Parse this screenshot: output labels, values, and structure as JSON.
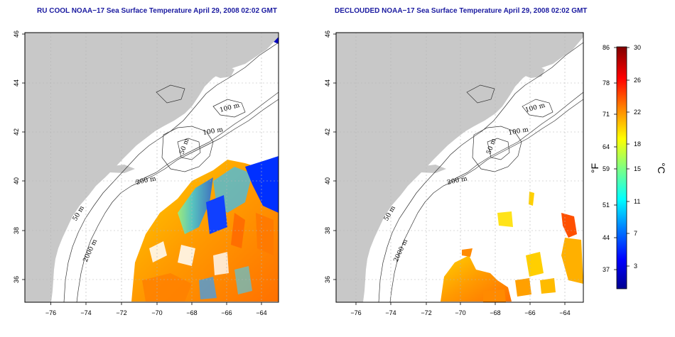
{
  "left_panel": {
    "title": "RU COOL NOAA−17 Sea Surface Temperature April 29, 2008 02:02 GMT"
  },
  "right_panel": {
    "title": "DECLOUDED NOAA−17 Sea Surface Temperature April 29, 2008 02:02 GMT"
  },
  "axes": {
    "lon_ticks": [
      "−76",
      "−74",
      "−72",
      "−70",
      "−68",
      "−66",
      "−64"
    ],
    "lat_ticks": [
      "46",
      "44",
      "42",
      "40",
      "38",
      "36"
    ]
  },
  "contour_labels": {
    "left": [
      "100 m",
      "100 m",
      "50 m",
      "200 m",
      "50 m",
      "2000 m"
    ],
    "right": [
      "100 m",
      "100 m",
      "50 m",
      "200 m",
      "50 m",
      "2000 m"
    ]
  },
  "colorbar": {
    "fahrenheit_label": "°F",
    "celsius_label": "°C",
    "fahrenheit_ticks": [
      "86",
      "78",
      "71",
      "64",
      "59",
      "51",
      "44",
      "37"
    ],
    "celsius_ticks": [
      "30",
      "26",
      "22",
      "18",
      "15",
      "11",
      "7",
      "3"
    ],
    "colors": [
      "#00008f",
      "#0000ff",
      "#0080ff",
      "#00ffff",
      "#80ff80",
      "#ffff00",
      "#ff8000",
      "#ff0000",
      "#800000"
    ]
  },
  "colors": {
    "land": "#c8c8c8",
    "title": "#1a1aa0",
    "grid": "#b4b4b4"
  }
}
